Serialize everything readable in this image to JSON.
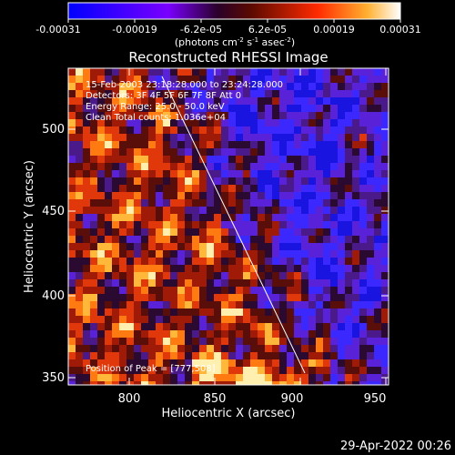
{
  "colorbar": {
    "ticks": [
      "-0.00031",
      "-0.00019",
      "-6.2e-05",
      "6.2e-05",
      "0.00019",
      "0.00031"
    ],
    "units_text": "(photons cm",
    "units_sup1": "-2",
    "units_mid": " s",
    "units_sup2": "-1",
    "units_end": " asec",
    "units_sup3": "-2",
    "units_close": ")"
  },
  "plot": {
    "title": "Reconstructed RHESSI Image",
    "xlabel": "Heliocentric X (arcsec)",
    "ylabel": "Heliocentric Y (arcsec)",
    "x_ticks": [
      "800",
      "850",
      "900",
      "950"
    ],
    "y_ticks": [
      "500",
      "450",
      "400",
      "350"
    ],
    "x_range": [
      763,
      950
    ],
    "y_range": [
      343,
      548
    ]
  },
  "annotations": {
    "line1": "15-Feb-2003 23:18:28.000 to 23:24:28.000",
    "line2": "Detectors: 3F 4F 5F 6F 7F 8F  Att 0",
    "line3": "Energy Range: 25.0 - 50.0 keV",
    "line4": "Clean     Total counts: 1.036e+04",
    "peak": "Position of Peak = [777,508]"
  },
  "footer": {
    "timestamp": "29-Apr-2022 00:26"
  },
  "colors": {
    "background": "#000000",
    "axis": "#ffffff",
    "colormap": [
      "#0000ff",
      "#6a00ff",
      "#3a0a3a",
      "#7a1a00",
      "#e0300a",
      "#ff9a1a",
      "#ffffff"
    ]
  }
}
